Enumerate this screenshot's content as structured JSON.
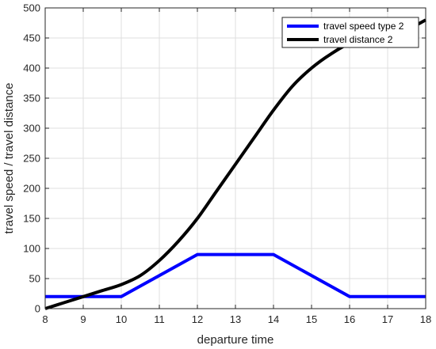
{
  "chart_data": {
    "type": "line",
    "xlabel": "departure time",
    "ylabel": "travel speed / travel distance",
    "xlim": [
      8,
      18
    ],
    "ylim": [
      0,
      500
    ],
    "xticks": [
      8,
      9,
      10,
      11,
      12,
      13,
      14,
      15,
      16,
      17,
      18
    ],
    "yticks": [
      0,
      50,
      100,
      150,
      200,
      250,
      300,
      350,
      400,
      450,
      500
    ],
    "grid": true,
    "legend_position": "top-right",
    "series": [
      {
        "name": "travel speed type 2",
        "color": "#0000ff",
        "x": [
          8,
          10,
          12,
          14,
          16,
          18
        ],
        "y": [
          20,
          20,
          90,
          90,
          20,
          20
        ]
      },
      {
        "name": "travel distance 2",
        "color": "#000000",
        "x": [
          8,
          8.5,
          9,
          9.5,
          10,
          10.5,
          11,
          11.5,
          12,
          12.5,
          13,
          13.5,
          14,
          14.5,
          15,
          15.5,
          16,
          16.5,
          17,
          17.5,
          18
        ],
        "y": [
          0,
          10,
          20,
          30,
          40,
          55,
          80,
          112,
          150,
          195,
          240,
          285,
          330,
          370,
          400,
          423,
          440,
          440,
          450,
          463,
          480
        ]
      }
    ]
  }
}
